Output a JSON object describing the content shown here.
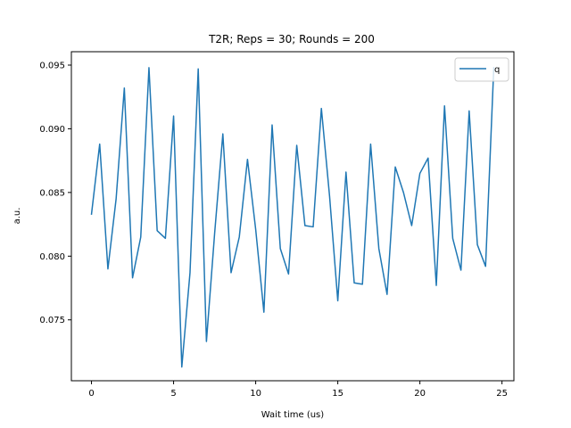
{
  "chart_data": {
    "type": "line",
    "title": "T2R; Reps = 30; Rounds = 200",
    "xlabel": "Wait time (us)",
    "ylabel": "a.u.",
    "xlim": [
      -1.225,
      25.725
    ],
    "ylim": [
      0.07022,
      0.09605
    ],
    "xticks": [
      0,
      5,
      10,
      15,
      20,
      25
    ],
    "yticks": [
      0.075,
      0.08,
      0.085,
      0.09,
      0.095
    ],
    "ytick_labels": [
      "0.075",
      "0.080",
      "0.085",
      "0.090",
      "0.095"
    ],
    "grid": false,
    "legend": "top-right",
    "series": [
      {
        "name": "q",
        "color": "#1f77b4",
        "x": [
          0,
          0.5,
          1,
          1.5,
          2,
          2.5,
          3,
          3.5,
          4,
          4.5,
          5,
          5.5,
          6,
          6.5,
          7,
          7.5,
          8,
          8.5,
          9,
          9.5,
          10,
          10.5,
          11,
          11.5,
          12,
          12.5,
          13,
          13.5,
          14,
          14.5,
          15,
          15.5,
          16,
          16.5,
          17,
          17.5,
          18,
          18.5,
          19,
          19.5,
          20,
          20.5,
          21,
          21.5,
          22,
          22.5,
          23,
          23.5,
          24,
          24.5
        ],
        "values": [
          0.0833,
          0.0888,
          0.079,
          0.0845,
          0.0932,
          0.0783,
          0.0815,
          0.0948,
          0.082,
          0.0814,
          0.091,
          0.0713,
          0.0787,
          0.0947,
          0.0733,
          0.0818,
          0.0896,
          0.0787,
          0.0815,
          0.0876,
          0.0821,
          0.0756,
          0.0903,
          0.0806,
          0.0786,
          0.0887,
          0.0824,
          0.0823,
          0.0916,
          0.0847,
          0.0765,
          0.0866,
          0.0779,
          0.0778,
          0.0888,
          0.0806,
          0.077,
          0.087,
          0.085,
          0.0824,
          0.0865,
          0.0877,
          0.0777,
          0.0918,
          0.0814,
          0.0789,
          0.0914,
          0.0809,
          0.0792,
          0.0948
        ]
      }
    ]
  }
}
